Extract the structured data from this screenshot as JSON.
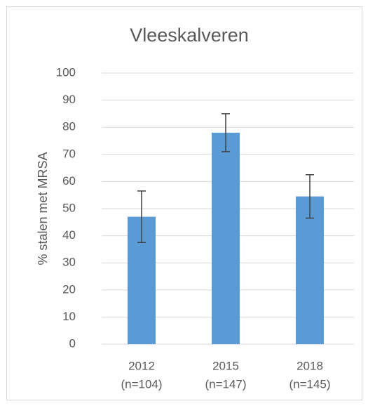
{
  "chart_data": {
    "type": "bar",
    "title": "Vleeskalveren",
    "ylabel": "% stalen met  MRSA",
    "categories": [
      [
        "2012",
        "(n=104)"
      ],
      [
        "2015",
        "(n=147)"
      ],
      [
        "2018",
        "(n=145)"
      ]
    ],
    "values": [
      47,
      78,
      54.5
    ],
    "errors": [
      9.5,
      7,
      8
    ],
    "color": "#5b9bd5",
    "ylim": [
      0,
      100
    ],
    "yticks": [
      0,
      10,
      20,
      30,
      40,
      50,
      60,
      70,
      80,
      90,
      100
    ],
    "grid": true
  }
}
